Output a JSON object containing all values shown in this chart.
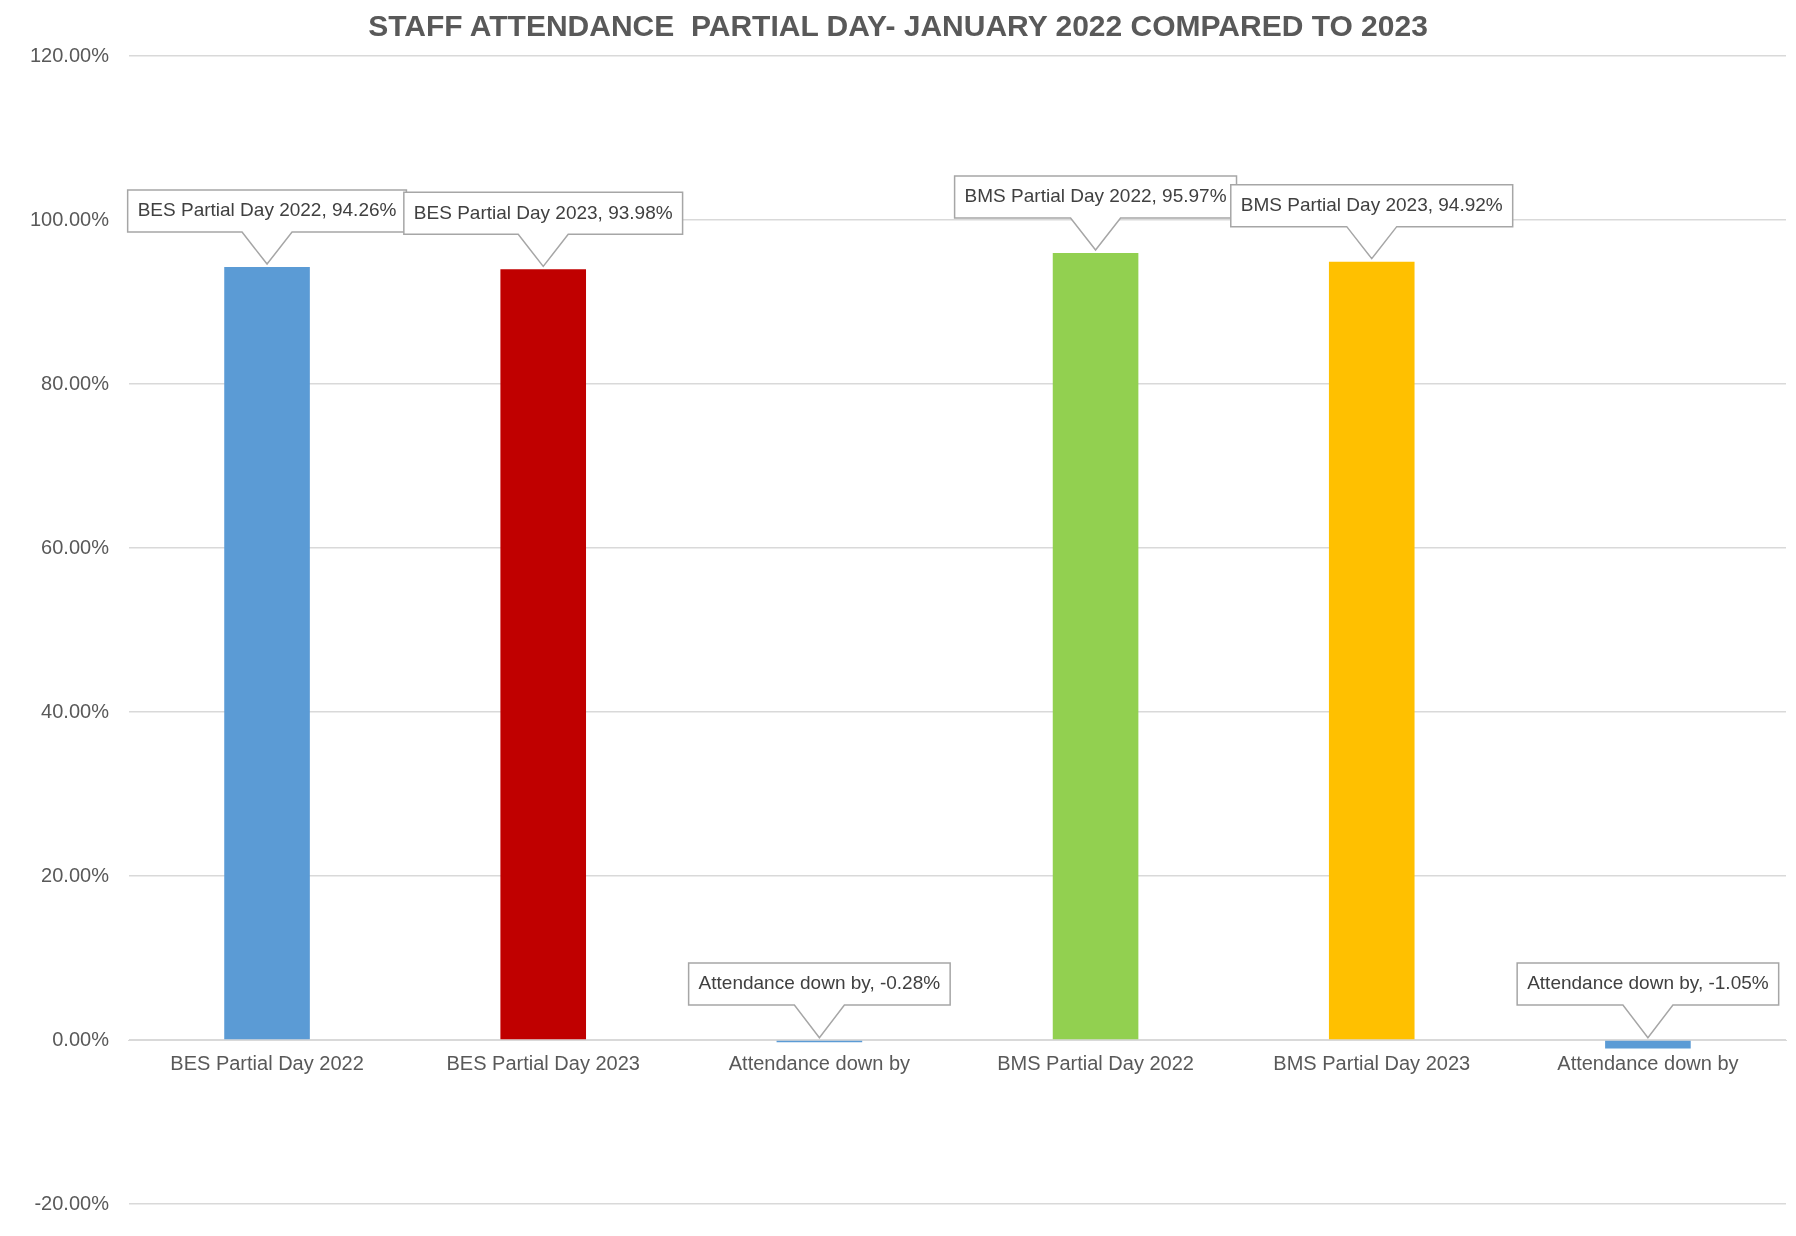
{
  "chart_data": {
    "type": "bar",
    "title": "STAFF ATTENDANCE  PARTIAL DAY- JANUARY 2022 COMPARED TO 2023",
    "categories": [
      "BES Partial Day 2022",
      "BES Partial Day 2023",
      "Attendance down by",
      "BMS Partial Day 2022",
      "BMS Partial Day 2023",
      "Attendance down by"
    ],
    "values": [
      94.26,
      93.98,
      -0.28,
      95.97,
      94.92,
      -1.05
    ],
    "colors": [
      "#5b9bd5",
      "#c00000",
      "#5b9bd5",
      "#92d050",
      "#ffc000",
      "#5b9bd5"
    ],
    "value_labels": [
      "BES Partial Day 2022, 94.26%",
      "BES Partial Day 2023, 93.98%",
      "Attendance down by, -0.28%",
      "BMS Partial Day 2022, 95.97%",
      "BMS Partial Day 2023, 94.92%",
      "Attendance down by, -1.05%"
    ],
    "ylim": [
      -20,
      120
    ],
    "yticks": [
      {
        "value": -20,
        "label": "-20.00%"
      },
      {
        "value": 0,
        "label": "0.00%"
      },
      {
        "value": 20,
        "label": "20.00%"
      },
      {
        "value": 40,
        "label": "40.00%"
      },
      {
        "value": 60,
        "label": "60.00%"
      },
      {
        "value": 80,
        "label": "80.00%"
      },
      {
        "value": 100,
        "label": "100.00%"
      },
      {
        "value": 120,
        "label": "120.00%"
      }
    ],
    "grid": "y",
    "legend": false
  }
}
